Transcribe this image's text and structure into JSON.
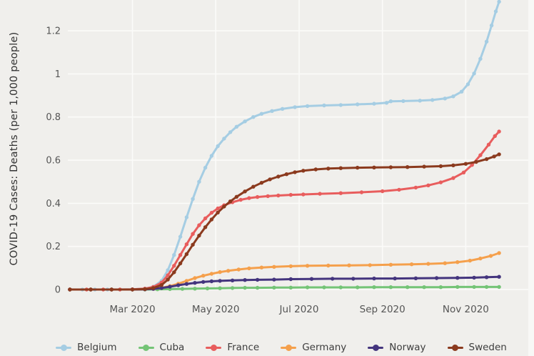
{
  "page": {
    "background": "#f0efec",
    "gridline_color": "#fbfbf9",
    "axis_text_color": "#555555",
    "title_text_color": "#333333"
  },
  "chart_data": {
    "type": "line",
    "title": "",
    "ylabel": "COVID-19 Cases: Deaths (per 1,000 people)",
    "xlabel": "",
    "grid": true,
    "legend_position": "bottom",
    "x_unit": "months since Jan 1 2020 (0 = Jan 1)",
    "x_range": [
      0.45,
      11.5
    ],
    "y_range": [
      0,
      1.343
    ],
    "x_ticks": [
      {
        "x": 2,
        "label": "Mar 2020"
      },
      {
        "x": 4,
        "label": "May 2020"
      },
      {
        "x": 6,
        "label": "Jul 2020"
      },
      {
        "x": 8,
        "label": "Sep 2020"
      },
      {
        "x": 10,
        "label": "Nov 2020"
      }
    ],
    "y_ticks": [
      {
        "y": 0,
        "label": "0"
      },
      {
        "y": 0.2,
        "label": "0.2"
      },
      {
        "y": 0.4,
        "label": "0.4"
      },
      {
        "y": 0.6,
        "label": "0.6"
      },
      {
        "y": 0.8,
        "label": "0.8"
      },
      {
        "y": 1,
        "label": "1"
      },
      {
        "y": 1.2,
        "label": "1.2"
      }
    ],
    "series": [
      {
        "name": "Belgium",
        "color": "#a5cde3",
        "points": [
          [
            0.5,
            0
          ],
          [
            0.8,
            0
          ],
          [
            1.1,
            0
          ],
          [
            1.4,
            0
          ],
          [
            1.7,
            0
          ],
          [
            2.0,
            0.001
          ],
          [
            2.3,
            0.004
          ],
          [
            2.5,
            0.013
          ],
          [
            2.7,
            0.04
          ],
          [
            2.85,
            0.09
          ],
          [
            3.0,
            0.16
          ],
          [
            3.15,
            0.245
          ],
          [
            3.3,
            0.335
          ],
          [
            3.45,
            0.42
          ],
          [
            3.6,
            0.5
          ],
          [
            3.75,
            0.565
          ],
          [
            3.9,
            0.62
          ],
          [
            4.05,
            0.665
          ],
          [
            4.2,
            0.7
          ],
          [
            4.35,
            0.73
          ],
          [
            4.5,
            0.755
          ],
          [
            4.7,
            0.78
          ],
          [
            4.9,
            0.8
          ],
          [
            5.1,
            0.815
          ],
          [
            5.35,
            0.828
          ],
          [
            5.6,
            0.838
          ],
          [
            5.9,
            0.846
          ],
          [
            6.2,
            0.851
          ],
          [
            6.6,
            0.854
          ],
          [
            7.0,
            0.856
          ],
          [
            7.4,
            0.859
          ],
          [
            7.8,
            0.862
          ],
          [
            8.1,
            0.866
          ],
          [
            8.2,
            0.873
          ],
          [
            8.5,
            0.874
          ],
          [
            8.9,
            0.876
          ],
          [
            9.2,
            0.879
          ],
          [
            9.5,
            0.886
          ],
          [
            9.7,
            0.896
          ],
          [
            9.9,
            0.918
          ],
          [
            10.05,
            0.952
          ],
          [
            10.2,
            1.002
          ],
          [
            10.35,
            1.07
          ],
          [
            10.5,
            1.15
          ],
          [
            10.62,
            1.225
          ],
          [
            10.72,
            1.29
          ],
          [
            10.8,
            1.335
          ]
        ]
      },
      {
        "name": "Cuba",
        "color": "#74c476",
        "points": [
          [
            0.5,
            0
          ],
          [
            1.0,
            0
          ],
          [
            1.5,
            0
          ],
          [
            2.0,
            0
          ],
          [
            2.3,
            0
          ],
          [
            2.6,
            0.001
          ],
          [
            2.9,
            0.002
          ],
          [
            3.2,
            0.003
          ],
          [
            3.5,
            0.004
          ],
          [
            3.8,
            0.005
          ],
          [
            4.1,
            0.006
          ],
          [
            4.4,
            0.007
          ],
          [
            4.7,
            0.008
          ],
          [
            5.0,
            0.008
          ],
          [
            5.4,
            0.009
          ],
          [
            5.8,
            0.009
          ],
          [
            6.2,
            0.01
          ],
          [
            6.6,
            0.01
          ],
          [
            7.0,
            0.01
          ],
          [
            7.4,
            0.01
          ],
          [
            7.8,
            0.011
          ],
          [
            8.2,
            0.011
          ],
          [
            8.6,
            0.011
          ],
          [
            9.0,
            0.011
          ],
          [
            9.4,
            0.011
          ],
          [
            9.8,
            0.012
          ],
          [
            10.2,
            0.012
          ],
          [
            10.5,
            0.012
          ],
          [
            10.8,
            0.012
          ]
        ]
      },
      {
        "name": "France",
        "color": "#e85d5d",
        "points": [
          [
            0.5,
            0
          ],
          [
            0.9,
            0
          ],
          [
            1.3,
            0
          ],
          [
            1.7,
            0
          ],
          [
            2.0,
            0.001
          ],
          [
            2.3,
            0.004
          ],
          [
            2.5,
            0.012
          ],
          [
            2.7,
            0.032
          ],
          [
            2.85,
            0.066
          ],
          [
            3.0,
            0.11
          ],
          [
            3.15,
            0.16
          ],
          [
            3.3,
            0.21
          ],
          [
            3.45,
            0.258
          ],
          [
            3.6,
            0.298
          ],
          [
            3.75,
            0.33
          ],
          [
            3.9,
            0.356
          ],
          [
            4.05,
            0.376
          ],
          [
            4.2,
            0.391
          ],
          [
            4.4,
            0.405
          ],
          [
            4.6,
            0.416
          ],
          [
            4.8,
            0.424
          ],
          [
            5.0,
            0.429
          ],
          [
            5.25,
            0.433
          ],
          [
            5.5,
            0.436
          ],
          [
            5.8,
            0.439
          ],
          [
            6.1,
            0.441
          ],
          [
            6.5,
            0.444
          ],
          [
            7.0,
            0.447
          ],
          [
            7.5,
            0.451
          ],
          [
            8.0,
            0.456
          ],
          [
            8.4,
            0.463
          ],
          [
            8.8,
            0.473
          ],
          [
            9.1,
            0.483
          ],
          [
            9.4,
            0.497
          ],
          [
            9.7,
            0.517
          ],
          [
            9.95,
            0.543
          ],
          [
            10.15,
            0.578
          ],
          [
            10.35,
            0.623
          ],
          [
            10.55,
            0.672
          ],
          [
            10.7,
            0.712
          ],
          [
            10.8,
            0.733
          ]
        ]
      },
      {
        "name": "Germany",
        "color": "#f5a04c",
        "points": [
          [
            0.5,
            0
          ],
          [
            1.0,
            0
          ],
          [
            1.5,
            0
          ],
          [
            2.0,
            0
          ],
          [
            2.3,
            0.001
          ],
          [
            2.5,
            0.003
          ],
          [
            2.7,
            0.008
          ],
          [
            2.9,
            0.016
          ],
          [
            3.1,
            0.027
          ],
          [
            3.3,
            0.04
          ],
          [
            3.5,
            0.053
          ],
          [
            3.7,
            0.064
          ],
          [
            3.9,
            0.073
          ],
          [
            4.1,
            0.081
          ],
          [
            4.3,
            0.087
          ],
          [
            4.55,
            0.093
          ],
          [
            4.8,
            0.098
          ],
          [
            5.1,
            0.102
          ],
          [
            5.4,
            0.105
          ],
          [
            5.8,
            0.108
          ],
          [
            6.2,
            0.11
          ],
          [
            6.7,
            0.111
          ],
          [
            7.2,
            0.112
          ],
          [
            7.7,
            0.113
          ],
          [
            8.2,
            0.115
          ],
          [
            8.7,
            0.117
          ],
          [
            9.1,
            0.119
          ],
          [
            9.5,
            0.122
          ],
          [
            9.8,
            0.127
          ],
          [
            10.1,
            0.134
          ],
          [
            10.35,
            0.144
          ],
          [
            10.6,
            0.156
          ],
          [
            10.8,
            0.169
          ]
        ]
      },
      {
        "name": "Norway",
        "color": "#44357e",
        "points": [
          [
            0.5,
            0
          ],
          [
            1.0,
            0
          ],
          [
            1.5,
            0
          ],
          [
            2.0,
            0
          ],
          [
            2.3,
            0.001
          ],
          [
            2.5,
            0.003
          ],
          [
            2.7,
            0.007
          ],
          [
            2.9,
            0.013
          ],
          [
            3.1,
            0.02
          ],
          [
            3.3,
            0.026
          ],
          [
            3.5,
            0.031
          ],
          [
            3.7,
            0.035
          ],
          [
            3.9,
            0.038
          ],
          [
            4.1,
            0.04
          ],
          [
            4.4,
            0.042
          ],
          [
            4.7,
            0.044
          ],
          [
            5.0,
            0.045
          ],
          [
            5.4,
            0.046
          ],
          [
            5.8,
            0.048
          ],
          [
            6.3,
            0.049
          ],
          [
            6.8,
            0.05
          ],
          [
            7.3,
            0.05
          ],
          [
            7.8,
            0.051
          ],
          [
            8.3,
            0.051
          ],
          [
            8.8,
            0.052
          ],
          [
            9.3,
            0.053
          ],
          [
            9.8,
            0.054
          ],
          [
            10.2,
            0.055
          ],
          [
            10.5,
            0.057
          ],
          [
            10.8,
            0.059
          ]
        ]
      },
      {
        "name": "Sweden",
        "color": "#8b3a1e",
        "points": [
          [
            0.5,
            0
          ],
          [
            1.0,
            0
          ],
          [
            1.5,
            0
          ],
          [
            2.0,
            0
          ],
          [
            2.3,
            0.002
          ],
          [
            2.5,
            0.007
          ],
          [
            2.7,
            0.021
          ],
          [
            2.85,
            0.046
          ],
          [
            3.0,
            0.08
          ],
          [
            3.15,
            0.121
          ],
          [
            3.3,
            0.164
          ],
          [
            3.45,
            0.208
          ],
          [
            3.6,
            0.25
          ],
          [
            3.75,
            0.289
          ],
          [
            3.9,
            0.325
          ],
          [
            4.05,
            0.357
          ],
          [
            4.2,
            0.385
          ],
          [
            4.35,
            0.409
          ],
          [
            4.5,
            0.43
          ],
          [
            4.7,
            0.455
          ],
          [
            4.9,
            0.477
          ],
          [
            5.1,
            0.495
          ],
          [
            5.3,
            0.511
          ],
          [
            5.5,
            0.524
          ],
          [
            5.7,
            0.535
          ],
          [
            5.9,
            0.544
          ],
          [
            6.1,
            0.551
          ],
          [
            6.4,
            0.557
          ],
          [
            6.7,
            0.561
          ],
          [
            7.0,
            0.563
          ],
          [
            7.4,
            0.565
          ],
          [
            7.8,
            0.566
          ],
          [
            8.2,
            0.567
          ],
          [
            8.6,
            0.568
          ],
          [
            9.0,
            0.57
          ],
          [
            9.4,
            0.572
          ],
          [
            9.7,
            0.576
          ],
          [
            10.0,
            0.583
          ],
          [
            10.25,
            0.592
          ],
          [
            10.5,
            0.605
          ],
          [
            10.68,
            0.617
          ],
          [
            10.8,
            0.627
          ]
        ]
      }
    ]
  }
}
